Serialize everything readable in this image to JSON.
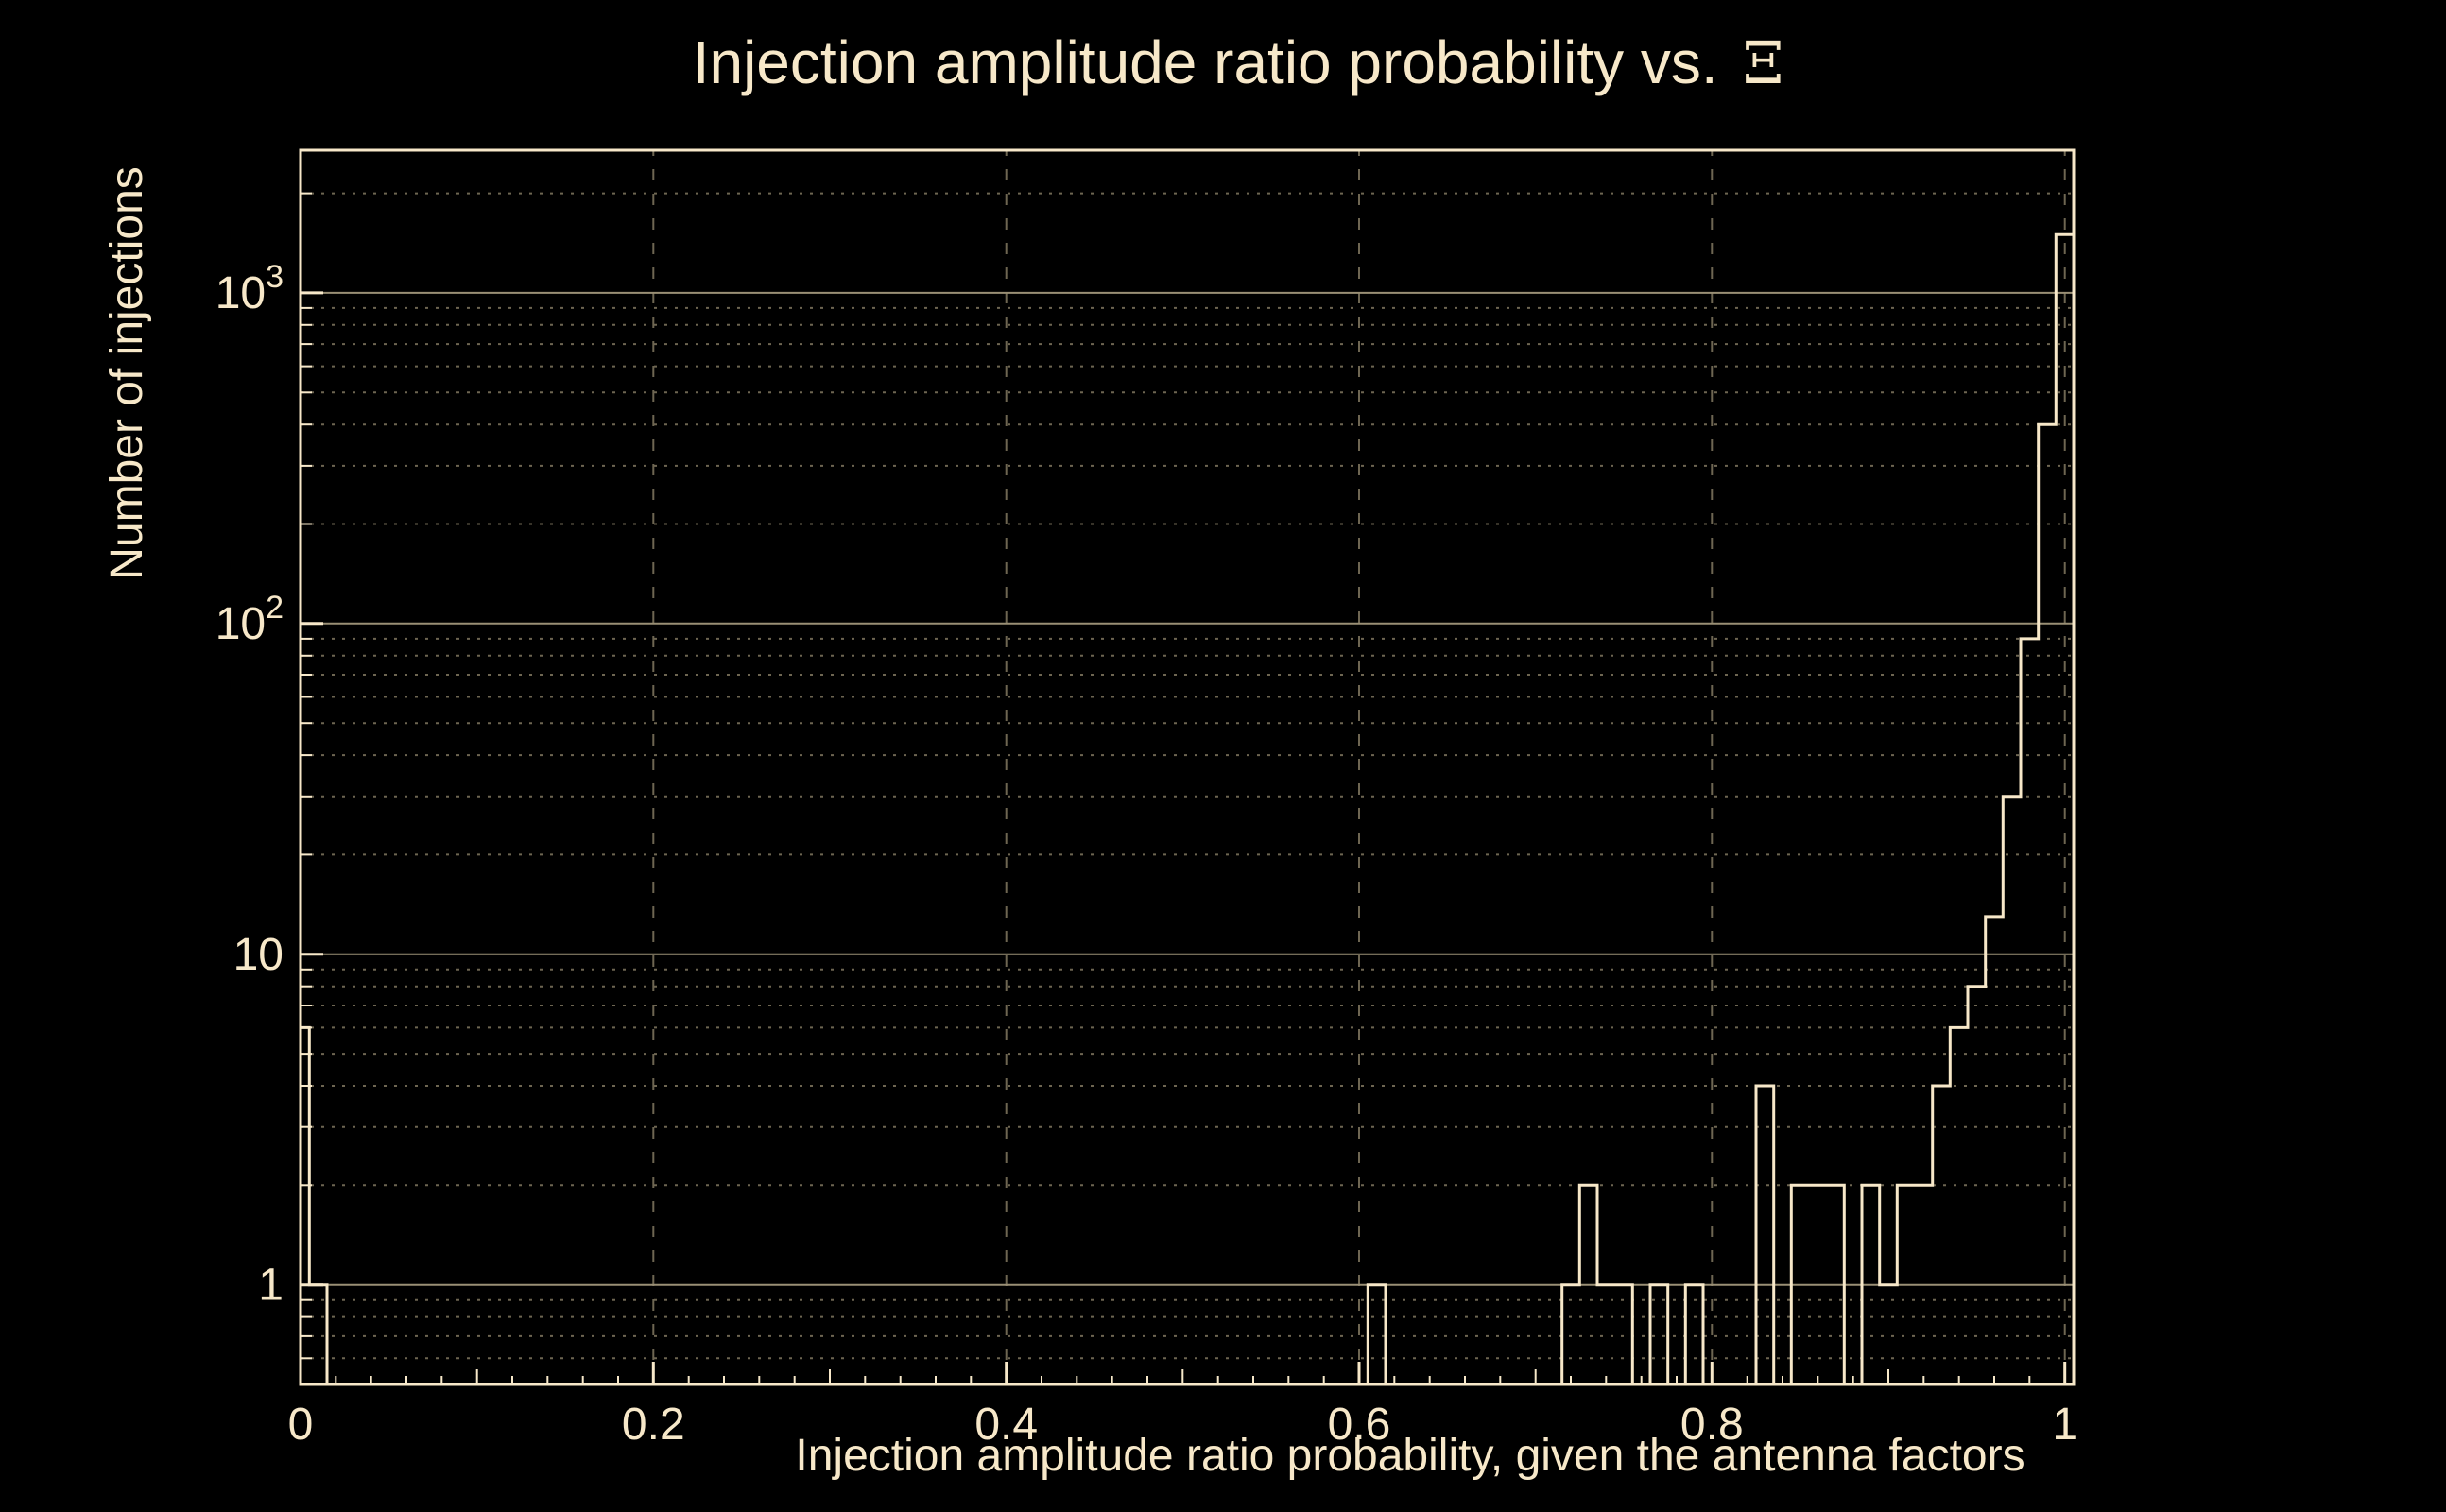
{
  "figure": {
    "title_text": "Injection amplitude ratio probability vs.",
    "title_symbol": "Ξ",
    "xlabel": "Injection amplitude ratio probability, given the antenna factors",
    "ylabel": "Number of injections"
  },
  "chart_data": {
    "type": "bar",
    "subtype": "histogram-step-outline",
    "title": "Injection amplitude ratio probability vs. Ξ",
    "xlabel": "Injection amplitude ratio probability, given the antenna factors",
    "ylabel": "Number of injections",
    "x_scale": "linear",
    "y_scale": "log",
    "xlim": [
      0,
      1.005
    ],
    "ylim": [
      0.5,
      2700
    ],
    "bin_width": 0.01,
    "bins": [
      {
        "center": 0.0,
        "count": 6
      },
      {
        "center": 0.01,
        "count": 1
      },
      {
        "center": 0.61,
        "count": 1
      },
      {
        "center": 0.72,
        "count": 1
      },
      {
        "center": 0.73,
        "count": 2
      },
      {
        "center": 0.74,
        "count": 1
      },
      {
        "center": 0.75,
        "count": 1
      },
      {
        "center": 0.77,
        "count": 1
      },
      {
        "center": 0.79,
        "count": 1
      },
      {
        "center": 0.83,
        "count": 4
      },
      {
        "center": 0.85,
        "count": 2
      },
      {
        "center": 0.86,
        "count": 2
      },
      {
        "center": 0.87,
        "count": 2
      },
      {
        "center": 0.89,
        "count": 2
      },
      {
        "center": 0.9,
        "count": 1
      },
      {
        "center": 0.91,
        "count": 2
      },
      {
        "center": 0.92,
        "count": 2
      },
      {
        "center": 0.93,
        "count": 4
      },
      {
        "center": 0.94,
        "count": 6
      },
      {
        "center": 0.95,
        "count": 8
      },
      {
        "center": 0.96,
        "count": 13
      },
      {
        "center": 0.97,
        "count": 30
      },
      {
        "center": 0.98,
        "count": 90
      },
      {
        "center": 0.99,
        "count": 400
      },
      {
        "center": 1.0,
        "count": 1500
      }
    ],
    "x_ticks": [
      {
        "v": 0,
        "label": "0"
      },
      {
        "v": 0.2,
        "label": "0.2"
      },
      {
        "v": 0.4,
        "label": "0.4"
      },
      {
        "v": 0.6,
        "label": "0.6"
      },
      {
        "v": 0.8,
        "label": "0.8"
      },
      {
        "v": 1,
        "label": "1"
      }
    ],
    "y_ticks": [
      {
        "v": 1,
        "base": "1",
        "exp": ""
      },
      {
        "v": 10,
        "base": "10",
        "exp": ""
      },
      {
        "v": 100,
        "base": "10",
        "exp": "2"
      },
      {
        "v": 1000,
        "base": "10",
        "exp": "3"
      }
    ],
    "grid": {
      "vertical_at": [
        0.2,
        0.4,
        0.6,
        0.8,
        1.0
      ],
      "horizontal": "log-decades-and-minors"
    },
    "colors": {
      "background": "#000000",
      "line": "#f7e8c9",
      "text": "#f7e8c9",
      "grid_major": "#9a8f75",
      "grid_minor": "#6e6652"
    }
  }
}
